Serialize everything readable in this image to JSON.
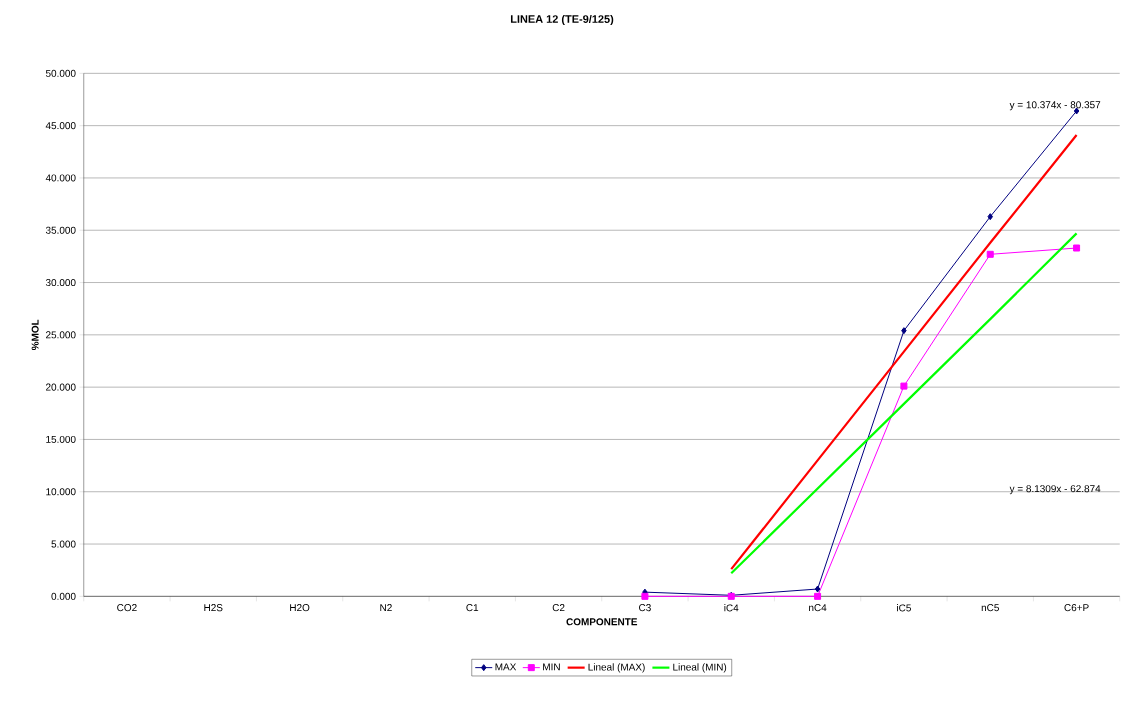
{
  "chart_data": {
    "type": "line",
    "title": "LINEA 12 (TE-9/125)",
    "xlabel": "COMPONENTE",
    "ylabel": "%MOL",
    "categories": [
      "CO2",
      "H2S",
      "H2O",
      "N2",
      "C1",
      "C2",
      "C3",
      "iC4",
      "nC4",
      "iC5",
      "nC5",
      "C6+P"
    ],
    "series": [
      {
        "name": "MAX",
        "color": "#000080",
        "marker": "diamond",
        "values": [
          null,
          null,
          null,
          null,
          null,
          null,
          0.4,
          0.1,
          0.7,
          25.4,
          36.3,
          46.4
        ]
      },
      {
        "name": "MIN",
        "color": "#ff00ff",
        "marker": "square",
        "values": [
          null,
          null,
          null,
          null,
          null,
          null,
          0.0,
          0.0,
          0.0,
          20.1,
          32.7,
          33.3
        ]
      },
      {
        "name": "Lineal (MAX)",
        "color": "#ff0000",
        "marker": "none",
        "values": [
          null,
          null,
          null,
          null,
          null,
          null,
          null,
          2.6,
          13.0,
          23.4,
          33.8,
          44.1
        ]
      },
      {
        "name": "Lineal (MIN)",
        "color": "#00ff00",
        "marker": "none",
        "values": [
          null,
          null,
          null,
          null,
          null,
          null,
          null,
          2.2,
          10.3,
          18.4,
          26.5,
          34.7
        ]
      }
    ],
    "ylim": [
      0,
      50
    ],
    "yticks": [
      {
        "value": 0,
        "label": "0.000"
      },
      {
        "value": 5,
        "label": "5.000"
      },
      {
        "value": 10,
        "label": "10.000"
      },
      {
        "value": 15,
        "label": "15.000"
      },
      {
        "value": 20,
        "label": "20.000"
      },
      {
        "value": 25,
        "label": "25.000"
      },
      {
        "value": 30,
        "label": "30.000"
      },
      {
        "value": 35,
        "label": "35.000"
      },
      {
        "value": 40,
        "label": "40.000"
      },
      {
        "value": 45,
        "label": "45.000"
      },
      {
        "value": 50,
        "label": "50.000"
      }
    ],
    "grid": "y",
    "legend": "bottom",
    "line_style": "solid",
    "annotations": [
      "y = 10.374x - 80.357",
      "y = 8.1309x - 62.874"
    ]
  }
}
